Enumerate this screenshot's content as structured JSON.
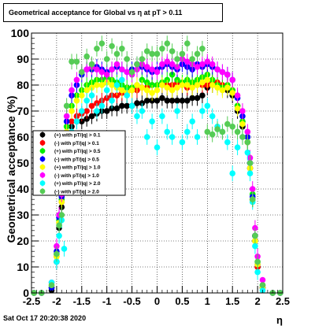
{
  "title": "Geometrical acceptance for Global vs  η at pT > 0.11",
  "footer": "Sat Oct 17 20:20:38 2020",
  "chart_data": {
    "type": "scatter",
    "title": "Geometrical acceptance for Global vs  η at pT > 0.11",
    "xlabel": "η",
    "ylabel": "Geometrical acceptance (%)",
    "xlim": [
      -2.5,
      2.5
    ],
    "ylim": [
      0,
      100
    ],
    "x_ticks": [
      "-2.5",
      "-2",
      "-1.5",
      "-1",
      "-0.5",
      "0",
      "0.5",
      "1",
      "1.5",
      "2",
      "2.5"
    ],
    "y_ticks": [
      "0",
      "10",
      "20",
      "30",
      "40",
      "50",
      "60",
      "70",
      "80",
      "90",
      "100"
    ],
    "grid": true,
    "legend_position": "middle-left",
    "series": [
      {
        "name": "(+) with pT/|q| > 0.1",
        "color": "#000000",
        "x": [
          -2.45,
          -2.3,
          -2.1,
          -2.0,
          -1.95,
          -1.9,
          -1.85,
          -1.8,
          -1.7,
          -1.6,
          -1.5,
          -1.4,
          -1.3,
          -1.2,
          -1.1,
          -1.0,
          -0.9,
          -0.8,
          -0.7,
          -0.6,
          -0.5,
          -0.4,
          -0.3,
          -0.2,
          -0.1,
          0.0,
          0.1,
          0.2,
          0.3,
          0.4,
          0.5,
          0.6,
          0.7,
          0.8,
          0.9,
          1.0,
          1.1,
          1.2,
          1.3,
          1.4,
          1.5,
          1.6,
          1.7,
          1.8,
          1.85,
          1.9,
          1.95,
          2.0,
          2.1,
          2.3,
          2.45
        ],
        "y": [
          0,
          0,
          1,
          12,
          25,
          33,
          50,
          58,
          64,
          66,
          66,
          67,
          68,
          69,
          70,
          70,
          71,
          71,
          72,
          72,
          72,
          73,
          73,
          74,
          74,
          74,
          75,
          74,
          74,
          74,
          74,
          74,
          75,
          75,
          76,
          79,
          80,
          80,
          79,
          78,
          76,
          70,
          64,
          58,
          48,
          36,
          20,
          10,
          2,
          0,
          0
        ]
      },
      {
        "name": "(-) with pT/|q| > 0.1",
        "color": "#ff0000",
        "x": [
          -2.45,
          -2.3,
          -2.1,
          -2.0,
          -1.95,
          -1.9,
          -1.85,
          -1.8,
          -1.7,
          -1.6,
          -1.5,
          -1.4,
          -1.3,
          -1.2,
          -1.1,
          -1.0,
          -0.9,
          -0.8,
          -0.7,
          -0.6,
          -0.5,
          -0.4,
          -0.3,
          -0.2,
          -0.1,
          0.0,
          0.1,
          0.2,
          0.3,
          0.4,
          0.5,
          0.6,
          0.7,
          0.8,
          0.9,
          1.0,
          1.1,
          1.2,
          1.3,
          1.4,
          1.5,
          1.6,
          1.7,
          1.8,
          1.85,
          1.9,
          1.95,
          2.0,
          2.1,
          2.3,
          2.45
        ],
        "y": [
          0,
          0,
          2,
          14,
          27,
          35,
          52,
          60,
          66,
          68,
          69,
          70,
          72,
          73,
          74,
          75,
          76,
          76,
          77,
          77,
          78,
          78,
          79,
          79,
          80,
          80,
          80,
          80,
          80,
          81,
          80,
          79,
          80,
          80,
          80,
          80,
          81,
          81,
          80,
          80,
          78,
          72,
          66,
          58,
          48,
          36,
          22,
          10,
          2,
          0,
          0
        ]
      },
      {
        "name": "(+) with pT/|q| > 0.5",
        "color": "#00ee00",
        "x": [
          -2.45,
          -2.3,
          -2.1,
          -2.0,
          -1.95,
          -1.9,
          -1.85,
          -1.8,
          -1.7,
          -1.6,
          -1.5,
          -1.4,
          -1.3,
          -1.2,
          -1.1,
          -1.0,
          -0.9,
          -0.8,
          -0.7,
          -0.6,
          -0.5,
          -0.4,
          -0.3,
          -0.2,
          -0.1,
          0.0,
          0.1,
          0.2,
          0.3,
          0.4,
          0.5,
          0.6,
          0.7,
          0.8,
          0.9,
          1.0,
          1.1,
          1.2,
          1.3,
          1.4,
          1.5,
          1.6,
          1.7,
          1.8,
          1.85,
          1.9,
          1.95,
          2.0,
          2.1,
          2.3,
          2.45
        ],
        "y": [
          0,
          0,
          2,
          15,
          28,
          36,
          56,
          64,
          72,
          76,
          78,
          80,
          81,
          82,
          82,
          83,
          82,
          81,
          80,
          79,
          79,
          80,
          82,
          81,
          80,
          80,
          81,
          82,
          84,
          82,
          81,
          82,
          81,
          82,
          83,
          84,
          82,
          80,
          79,
          80,
          78,
          72,
          66,
          60,
          50,
          38,
          22,
          12,
          3,
          0,
          0
        ]
      },
      {
        "name": "(-) with pT/|q| > 0.5",
        "color": "#0000ff",
        "x": [
          -2.45,
          -2.3,
          -2.1,
          -2.0,
          -1.95,
          -1.9,
          -1.85,
          -1.8,
          -1.7,
          -1.6,
          -1.5,
          -1.4,
          -1.3,
          -1.2,
          -1.1,
          -1.0,
          -0.9,
          -0.8,
          -0.7,
          -0.6,
          -0.5,
          -0.4,
          -0.3,
          -0.2,
          -0.1,
          0.0,
          0.1,
          0.2,
          0.3,
          0.4,
          0.5,
          0.6,
          0.7,
          0.8,
          0.9,
          1.0,
          1.1,
          1.2,
          1.3,
          1.4,
          1.5,
          1.6,
          1.7,
          1.8,
          1.85,
          1.9,
          1.95,
          2.0,
          2.1,
          2.3,
          2.45
        ],
        "y": [
          0,
          0,
          2,
          16,
          29,
          37,
          56,
          66,
          76,
          80,
          84,
          86,
          86,
          87,
          86,
          85,
          86,
          87,
          86,
          85,
          86,
          88,
          87,
          86,
          85,
          86,
          87,
          88,
          87,
          86,
          88,
          87,
          86,
          88,
          87,
          88,
          87,
          86,
          85,
          84,
          82,
          75,
          68,
          60,
          50,
          37,
          22,
          11,
          2,
          0,
          0
        ]
      },
      {
        "name": "(+) with pT/|q| > 1.0",
        "color": "#ffff00",
        "x": [
          -2.45,
          -2.3,
          -2.1,
          -2.0,
          -1.95,
          -1.9,
          -1.85,
          -1.8,
          -1.7,
          -1.6,
          -1.5,
          -1.4,
          -1.3,
          -1.2,
          -1.1,
          -1.0,
          -0.9,
          -0.8,
          -0.7,
          -0.6,
          -0.5,
          -0.4,
          -0.3,
          -0.2,
          -0.1,
          0.0,
          0.1,
          0.2,
          0.3,
          0.4,
          0.5,
          0.6,
          0.7,
          0.8,
          0.9,
          1.0,
          1.1,
          1.2,
          1.3,
          1.4,
          1.5,
          1.6,
          1.7,
          1.8,
          1.85,
          1.9,
          1.95,
          2.0,
          2.1,
          2.3,
          2.45
        ],
        "y": [
          0,
          0,
          3,
          14,
          27,
          35,
          54,
          62,
          70,
          74,
          76,
          78,
          79,
          80,
          80,
          81,
          80,
          79,
          78,
          77,
          78,
          80,
          79,
          78,
          77,
          78,
          80,
          79,
          78,
          79,
          80,
          80,
          79,
          80,
          81,
          82,
          80,
          79,
          78,
          79,
          77,
          71,
          65,
          58,
          48,
          36,
          20,
          11,
          2,
          0,
          0
        ]
      },
      {
        "name": "(-) with pT/|q| > 1.0",
        "color": "#ff00ff",
        "x": [
          -2.45,
          -2.3,
          -2.1,
          -2.0,
          -1.95,
          -1.9,
          -1.85,
          -1.8,
          -1.7,
          -1.6,
          -1.5,
          -1.4,
          -1.3,
          -1.2,
          -1.1,
          -1.0,
          -0.9,
          -0.8,
          -0.7,
          -0.6,
          -0.5,
          -0.4,
          -0.3,
          -0.2,
          -0.1,
          0.0,
          0.1,
          0.2,
          0.3,
          0.4,
          0.5,
          0.6,
          0.7,
          0.8,
          0.9,
          1.0,
          1.1,
          1.2,
          1.3,
          1.4,
          1.5,
          1.6,
          1.7,
          1.8,
          1.85,
          1.9,
          1.95,
          2.0,
          2.1,
          2.3,
          2.45
        ],
        "y": [
          0,
          0,
          4,
          18,
          30,
          38,
          58,
          68,
          78,
          82,
          85,
          86,
          87,
          86,
          85,
          84,
          86,
          88,
          86,
          85,
          84,
          86,
          88,
          87,
          86,
          85,
          88,
          89,
          88,
          87,
          90,
          89,
          88,
          87,
          88,
          89,
          88,
          86,
          85,
          84,
          82,
          76,
          70,
          62,
          52,
          40,
          25,
          14,
          5,
          0,
          0
        ]
      },
      {
        "name": "(+) with pT/|q| > 2.0",
        "color": "#00ffff",
        "x": [
          -2.45,
          -2.3,
          -2.1,
          -2.0,
          -1.95,
          -1.9,
          -1.85,
          -1.8,
          -1.7,
          -1.6,
          -1.5,
          -1.4,
          -1.3,
          -1.2,
          -1.1,
          -1.0,
          -0.9,
          -0.8,
          -0.7,
          -0.6,
          -0.5,
          -0.4,
          -0.3,
          -0.2,
          -0.1,
          0.0,
          0.1,
          0.2,
          0.3,
          0.4,
          0.5,
          0.6,
          0.7,
          0.8,
          0.9,
          1.0,
          1.1,
          1.2,
          1.3,
          1.4,
          1.5,
          1.6,
          1.7,
          1.8,
          1.85,
          1.9,
          1.95,
          2.0,
          2.1,
          2.3,
          2.45
        ],
        "y": [
          0,
          0,
          4,
          12,
          22,
          28,
          17,
          55,
          62,
          66,
          70,
          74,
          76,
          70,
          72,
          78,
          74,
          80,
          82,
          76,
          72,
          68,
          70,
          60,
          66,
          56,
          68,
          62,
          60,
          70,
          58,
          62,
          66,
          60,
          70,
          72,
          68,
          64,
          62,
          58,
          46,
          56,
          60,
          54,
          46,
          35,
          18,
          8,
          1,
          0,
          0
        ]
      },
      {
        "name": "(-) with pT/|q| > 2.0",
        "color": "#55cc55",
        "x": [
          -2.45,
          -2.3,
          -2.1,
          -2.0,
          -1.95,
          -1.9,
          -1.85,
          -1.8,
          -1.7,
          -1.6,
          -1.5,
          -1.4,
          -1.3,
          -1.2,
          -1.1,
          -1.0,
          -0.9,
          -0.8,
          -0.7,
          -0.6,
          -0.5,
          -0.4,
          -0.3,
          -0.2,
          -0.1,
          0.0,
          0.1,
          0.2,
          0.3,
          0.4,
          0.5,
          0.6,
          0.7,
          0.8,
          0.9,
          1.0,
          1.1,
          1.2,
          1.3,
          1.4,
          1.5,
          1.6,
          1.7,
          1.8,
          1.85,
          1.9,
          1.95,
          2.0,
          2.1,
          2.3,
          2.45
        ],
        "y": [
          0,
          0,
          3,
          15,
          26,
          30,
          50,
          72,
          89,
          89,
          85,
          91,
          88,
          94,
          96,
          90,
          95,
          92,
          94,
          90,
          85,
          88,
          90,
          93,
          92,
          92,
          94,
          96,
          93,
          90,
          92,
          96,
          90,
          92,
          94,
          62,
          61,
          63,
          62,
          65,
          64,
          62,
          60,
          58,
          50,
          36,
          22,
          12,
          3,
          0,
          0
        ]
      }
    ]
  }
}
